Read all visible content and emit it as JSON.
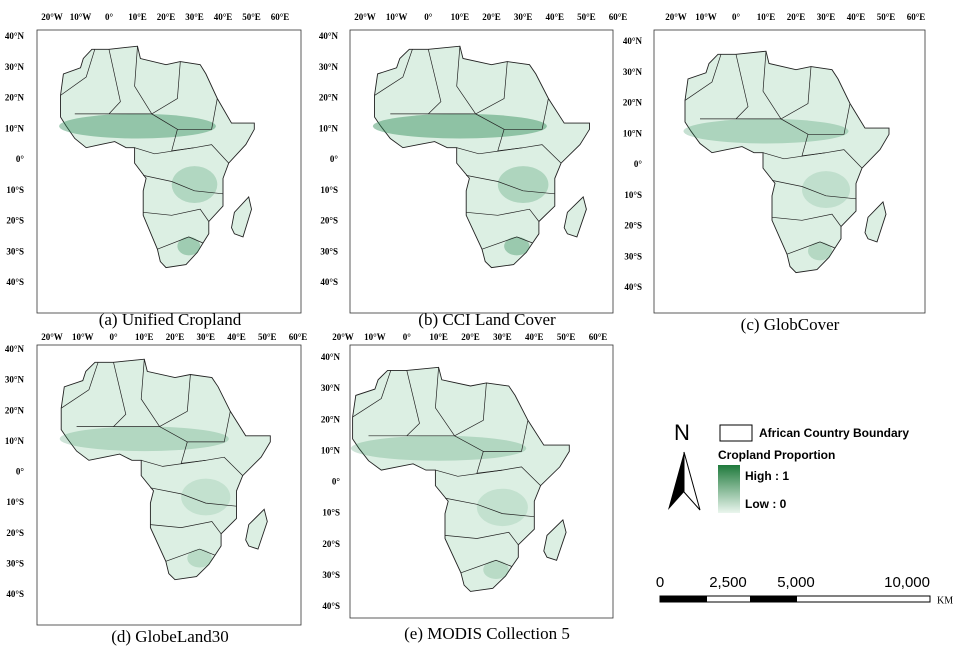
{
  "lon_labels": [
    "20°W",
    "10°W",
    "0°",
    "10°E",
    "20°E",
    "30°E",
    "40°E",
    "50°E",
    "60°E"
  ],
  "lat_labels": [
    "40°N",
    "30°N",
    "20°N",
    "10°N",
    "0°",
    "10°S",
    "20°S",
    "30°S",
    "40°S"
  ],
  "panels": [
    {
      "caption": "(a) Unified Cropland"
    },
    {
      "caption": "(b) CCI Land Cover"
    },
    {
      "caption": "(c) GlobCover"
    },
    {
      "caption": "(d) GlobeLand30"
    },
    {
      "caption": "(e) MODIS Collection 5"
    }
  ],
  "legend": {
    "north": "N",
    "boundary": "African Country Boundary",
    "title": "Cropland Proportion",
    "high": "High : 1",
    "low": "Low : 0"
  },
  "scale_bar": {
    "labels": [
      "0",
      "2,500",
      "5,000",
      "10,000"
    ],
    "unit": "KM"
  }
}
